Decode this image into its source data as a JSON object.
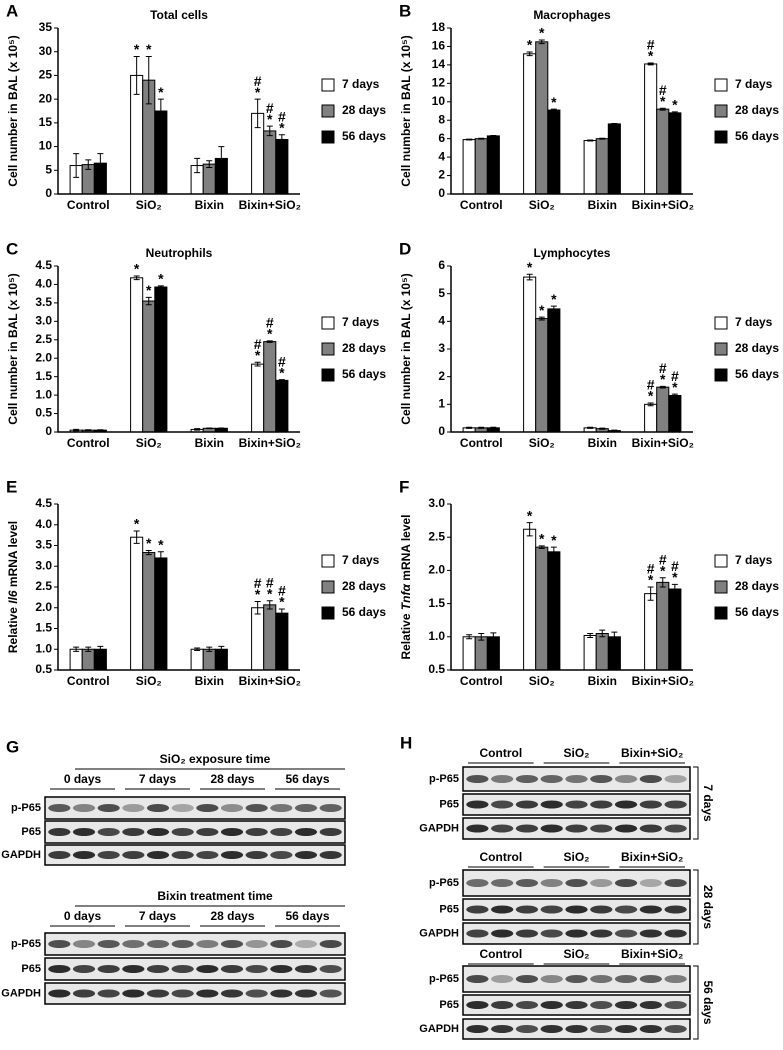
{
  "chart_data": [
    {
      "type": "bar",
      "panel": "A",
      "title": "Total cells",
      "ylabel": "Cell number in BAL (x 10⁵)",
      "categories": [
        "Control",
        "SiO₂",
        "Bixin",
        "Bixin+SiO₂"
      ],
      "ylim": [
        0,
        35
      ],
      "yticks": [
        0,
        5,
        10,
        15,
        20,
        25,
        30,
        35
      ],
      "series": [
        {
          "name": "7 days",
          "color": "#ffffff",
          "values": [
            6,
            25,
            6,
            17
          ],
          "errors": [
            2.5,
            4,
            1.5,
            3
          ],
          "annotations": [
            [],
            [
              "*"
            ],
            [],
            [
              "#",
              "*"
            ]
          ]
        },
        {
          "name": "28 days",
          "color": "#808080",
          "values": [
            6.2,
            24,
            6.3,
            13.3
          ],
          "errors": [
            1,
            5,
            0.7,
            1
          ],
          "annotations": [
            [],
            [
              "*"
            ],
            [],
            [
              "#",
              "*"
            ]
          ]
        },
        {
          "name": "56 days",
          "color": "#000000",
          "values": [
            6.5,
            17.5,
            7.5,
            11.5
          ],
          "errors": [
            2,
            2.5,
            2.5,
            1
          ],
          "annotations": [
            [],
            [
              "*"
            ],
            [],
            [
              "#",
              "*"
            ]
          ]
        }
      ]
    },
    {
      "type": "bar",
      "panel": "B",
      "title": "Macrophages",
      "ylabel": "Cell number in BAL (x 10⁵)",
      "categories": [
        "Control",
        "SiO₂",
        "Bixin",
        "Bixin+SiO₂"
      ],
      "ylim": [
        0,
        18
      ],
      "yticks": [
        0,
        2,
        4,
        6,
        8,
        10,
        12,
        14,
        16,
        18
      ],
      "series": [
        {
          "name": "7 days",
          "color": "#ffffff",
          "values": [
            5.9,
            15.2,
            5.8,
            14.1
          ],
          "errors": [
            0.05,
            0.2,
            0.05,
            0.1
          ],
          "annotations": [
            [],
            [
              "*"
            ],
            [],
            [
              "#",
              "*"
            ]
          ]
        },
        {
          "name": "28 days",
          "color": "#808080",
          "values": [
            6,
            16.5,
            6,
            9.2
          ],
          "errors": [
            0.05,
            0.2,
            0.05,
            0.1
          ],
          "annotations": [
            [],
            [
              "*"
            ],
            [],
            [
              "#",
              "*"
            ]
          ]
        },
        {
          "name": "56 days",
          "color": "#000000",
          "values": [
            6.3,
            9.1,
            7.6,
            8.8
          ],
          "errors": [
            0.05,
            0.1,
            0.05,
            0.1
          ],
          "annotations": [
            [],
            [
              "*"
            ],
            [],
            [
              "*"
            ]
          ]
        }
      ]
    },
    {
      "type": "bar",
      "panel": "C",
      "title": "Neutrophils",
      "ylabel": "Cell number in BAL (x 10⁵)",
      "categories": [
        "Control",
        "SiO₂",
        "Bixin",
        "Bixin+SiO₂"
      ],
      "ylim": [
        0,
        4.5
      ],
      "yticks": [
        0,
        0.5,
        {
          "value": 1,
          "label": "1.0"
        },
        1.5,
        {
          "value": 2,
          "label": "2.0"
        },
        2.5,
        {
          "value": 3,
          "label": "3.0"
        },
        3.5,
        {
          "value": 4,
          "label": "4.0"
        },
        4.5
      ],
      "series": [
        {
          "name": "7 days",
          "color": "#ffffff",
          "values": [
            0.05,
            4.18,
            0.07,
            1.84
          ],
          "errors": [
            0.02,
            0.05,
            0.02,
            0.05
          ],
          "annotations": [
            [],
            [
              "*"
            ],
            [],
            [
              "#",
              "*"
            ]
          ]
        },
        {
          "name": "28 days",
          "color": "#808080",
          "values": [
            0.05,
            3.55,
            0.1,
            2.45
          ],
          "errors": [
            0.01,
            0.1,
            0.01,
            0.02
          ],
          "annotations": [
            [],
            [
              "*"
            ],
            [],
            [
              "#",
              "*"
            ]
          ]
        },
        {
          "name": "56 days",
          "color": "#000000",
          "values": [
            0.05,
            3.93,
            0.1,
            1.4
          ],
          "errors": [
            0.01,
            0.03,
            0.01,
            0.02
          ],
          "annotations": [
            [],
            [
              "*"
            ],
            [],
            [
              "#",
              "*"
            ]
          ]
        }
      ]
    },
    {
      "type": "bar",
      "panel": "D",
      "title": "Lymphocytes",
      "ylabel": "Cell number in BAL (x 10⁵)",
      "categories": [
        "Control",
        "SiO₂",
        "Bixin",
        "Bixin+SiO₂"
      ],
      "ylim": [
        0,
        6
      ],
      "yticks": [
        0,
        1,
        2,
        3,
        4,
        5,
        6
      ],
      "series": [
        {
          "name": "7 days",
          "color": "#ffffff",
          "values": [
            0.15,
            5.6,
            0.15,
            1
          ],
          "errors": [
            0.02,
            0.1,
            0.02,
            0.05
          ],
          "annotations": [
            [],
            [
              "*"
            ],
            [],
            [
              "#",
              "*"
            ]
          ]
        },
        {
          "name": "28 days",
          "color": "#808080",
          "values": [
            0.15,
            4.1,
            0.12,
            1.62
          ],
          "errors": [
            0.02,
            0.05,
            0.02,
            0.03
          ],
          "annotations": [
            [],
            [
              "*"
            ],
            [],
            [
              "#",
              "*"
            ]
          ]
        },
        {
          "name": "56 days",
          "color": "#000000",
          "values": [
            0.15,
            4.45,
            0.05,
            1.32
          ],
          "errors": [
            0.02,
            0.1,
            0.02,
            0.05
          ],
          "annotations": [
            [],
            [
              "*"
            ],
            [],
            [
              "#",
              "*"
            ]
          ]
        }
      ]
    },
    {
      "type": "bar",
      "panel": "E",
      "ylabel": {
        "pre": "Relative ",
        "gene": "Il6",
        "post": " mRNA level"
      },
      "categories": [
        "Control",
        "SiO₂",
        "Bixin",
        "Bixin+SiO₂"
      ],
      "ylim": [
        0.5,
        4.5
      ],
      "yticks": [
        0.5,
        {
          "value": 1,
          "label": "1.0"
        },
        1.5,
        {
          "value": 2,
          "label": "2.0"
        },
        2.5,
        {
          "value": 3,
          "label": "3.0"
        },
        3.5,
        {
          "value": 4,
          "label": "4.0"
        },
        4.5
      ],
      "series": [
        {
          "name": "7 days",
          "color": "#ffffff",
          "values": [
            1,
            3.7,
            1,
            2
          ],
          "errors": [
            0.05,
            0.15,
            0.03,
            0.15
          ],
          "annotations": [
            [],
            [
              "*"
            ],
            [],
            [
              "#",
              "*"
            ]
          ]
        },
        {
          "name": "28 days",
          "color": "#808080",
          "values": [
            1,
            3.33,
            1,
            2.07
          ],
          "errors": [
            0.05,
            0.05,
            0.05,
            0.1
          ],
          "annotations": [
            [],
            [
              "*"
            ],
            [],
            [
              "#",
              "*"
            ]
          ]
        },
        {
          "name": "56 days",
          "color": "#000000",
          "values": [
            1,
            3.2,
            1,
            1.87
          ],
          "errors": [
            0.07,
            0.15,
            0.07,
            0.1
          ],
          "annotations": [
            [],
            [
              "*"
            ],
            [],
            [
              "#",
              "*"
            ]
          ]
        }
      ]
    },
    {
      "type": "bar",
      "panel": "F",
      "ylabel": {
        "pre": "Relative ",
        "gene": "Tnfα",
        "post": " mRNA level"
      },
      "categories": [
        "Control",
        "SiO₂",
        "Bixin",
        "Bixin+SiO₂"
      ],
      "ylim": [
        0.5,
        3
      ],
      "yticks": [
        0.5,
        {
          "value": 1,
          "label": "1.0"
        },
        1.5,
        {
          "value": 2,
          "label": "2.0"
        },
        2.5,
        {
          "value": 3,
          "label": "3.0"
        }
      ],
      "series": [
        {
          "name": "7 days",
          "color": "#ffffff",
          "values": [
            1,
            2.62,
            1.02,
            1.65
          ],
          "errors": [
            0.03,
            0.1,
            0.03,
            0.1
          ],
          "annotations": [
            [],
            [
              "*"
            ],
            [],
            [
              "#",
              "*"
            ]
          ]
        },
        {
          "name": "28 days",
          "color": "#808080",
          "values": [
            1,
            2.35,
            1.05,
            1.82
          ],
          "errors": [
            0.05,
            0.02,
            0.05,
            0.07
          ],
          "annotations": [
            [],
            [
              "*"
            ],
            [],
            [
              "#",
              "*"
            ]
          ]
        },
        {
          "name": "56 days",
          "color": "#000000",
          "values": [
            1,
            2.28,
            1,
            1.72
          ],
          "errors": [
            0.06,
            0.07,
            0.07,
            0.07
          ],
          "annotations": [
            [],
            [
              "*"
            ],
            [],
            [
              "#",
              "*"
            ]
          ]
        }
      ]
    }
  ],
  "blots": {
    "G": {
      "label": "G",
      "panels": [
        {
          "title": "SiO₂ exposure time",
          "groups": [
            "0 days",
            "7 days",
            "28 days",
            "56 days"
          ],
          "rows": [
            "p-P65",
            "P65",
            "GAPDH"
          ]
        },
        {
          "title": "Bixin treatment time",
          "groups": [
            "0 days",
            "7 days",
            "28 days",
            "56 days"
          ],
          "rows": [
            "p-P65",
            "P65",
            "GAPDH"
          ]
        }
      ]
    },
    "H": {
      "label": "H",
      "panels": [
        {
          "groups": [
            "Control",
            "SiO₂",
            "Bixin+SiO₂"
          ],
          "rows": [
            "p-P65",
            "P65",
            "GAPDH"
          ],
          "side": "7 days"
        },
        {
          "groups": [
            "Control",
            "SiO₂",
            "Bixin+SiO₂"
          ],
          "rows": [
            "p-P65",
            "P65",
            "GAPDH"
          ],
          "side": "28 days"
        },
        {
          "groups": [
            "Control",
            "SiO₂",
            "Bixin+SiO₂"
          ],
          "rows": [
            "p-P65",
            "P65",
            "GAPDH"
          ],
          "side": "56 days"
        }
      ]
    }
  }
}
